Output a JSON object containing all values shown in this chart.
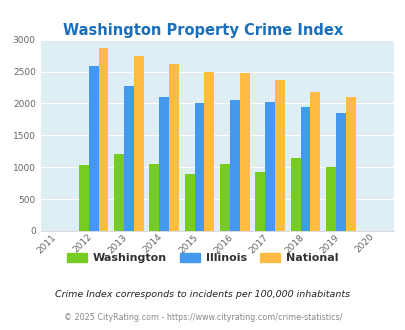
{
  "title": "Washington Property Crime Index",
  "title_color": "#1a6fbd",
  "years": [
    2012,
    2013,
    2014,
    2015,
    2016,
    2017,
    2018,
    2019
  ],
  "washington": [
    1030,
    1200,
    1050,
    900,
    1050,
    930,
    1140,
    1000
  ],
  "illinois": [
    2590,
    2280,
    2100,
    2000,
    2060,
    2020,
    1950,
    1855
  ],
  "national": [
    2870,
    2740,
    2620,
    2500,
    2470,
    2360,
    2185,
    2095
  ],
  "washington_color": "#77cc22",
  "illinois_color": "#4499ee",
  "national_color": "#ffbb44",
  "bg_color": "#ddeef4",
  "xlim": [
    2010.5,
    2020.5
  ],
  "ylim": [
    0,
    3000
  ],
  "yticks": [
    0,
    500,
    1000,
    1500,
    2000,
    2500,
    3000
  ],
  "xticks": [
    2011,
    2012,
    2013,
    2014,
    2015,
    2016,
    2017,
    2018,
    2019,
    2020
  ],
  "footer1": "Crime Index corresponds to incidents per 100,000 inhabitants",
  "footer2": "© 2025 CityRating.com - https://www.cityrating.com/crime-statistics/",
  "legend_labels": [
    "Washington",
    "Illinois",
    "National"
  ],
  "bar_width": 0.28
}
